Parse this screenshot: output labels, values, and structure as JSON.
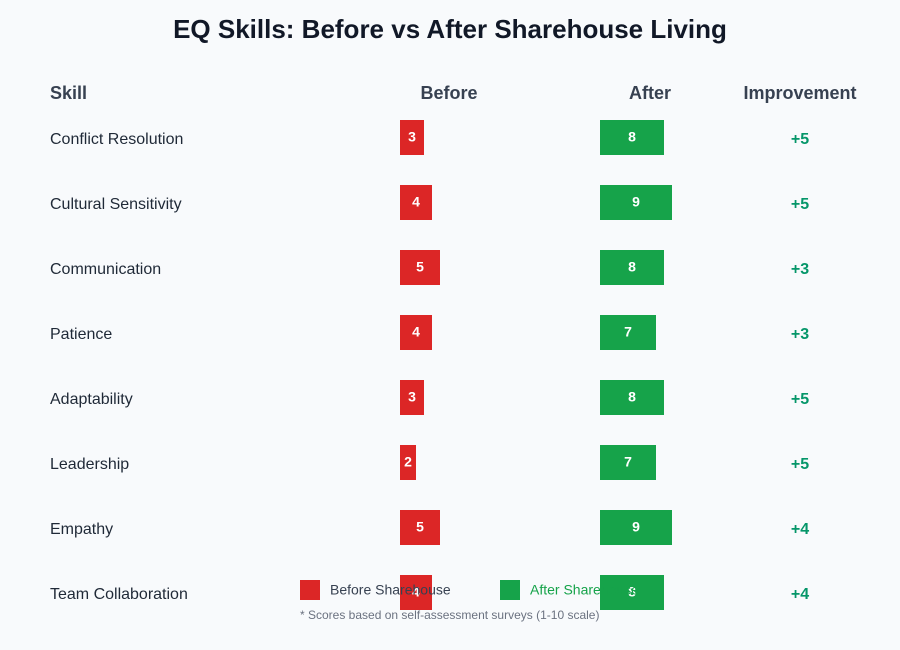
{
  "chart_data": {
    "type": "paired-bar",
    "title": "EQ Skills: Before vs After Sharehouse Living",
    "headers": [
      "Skill",
      "Before",
      "After",
      "Improvement"
    ],
    "categories": [
      "Conflict Resolution",
      "Cultural Sensitivity",
      "Communication",
      "Patience",
      "Adaptability",
      "Leadership",
      "Empathy",
      "Team Collaboration"
    ],
    "series": [
      {
        "name": "Before Sharehouse",
        "color": "#dc2626",
        "values": [
          3,
          4,
          5,
          4,
          3,
          2,
          5,
          4
        ]
      },
      {
        "name": "After Sharehouse",
        "color": "#16a34a",
        "values": [
          8,
          9,
          8,
          7,
          8,
          7,
          9,
          8
        ]
      }
    ],
    "improvement": {
      "color": "#059669",
      "values": [
        5,
        5,
        3,
        3,
        5,
        5,
        4,
        4
      ],
      "value_labels": [
        "+5",
        "+5",
        "+3",
        "+3",
        "+5",
        "+5",
        "+4",
        "+4"
      ]
    },
    "footnote": "* Scores based on self-assessment surveys (1-10 scale)"
  }
}
